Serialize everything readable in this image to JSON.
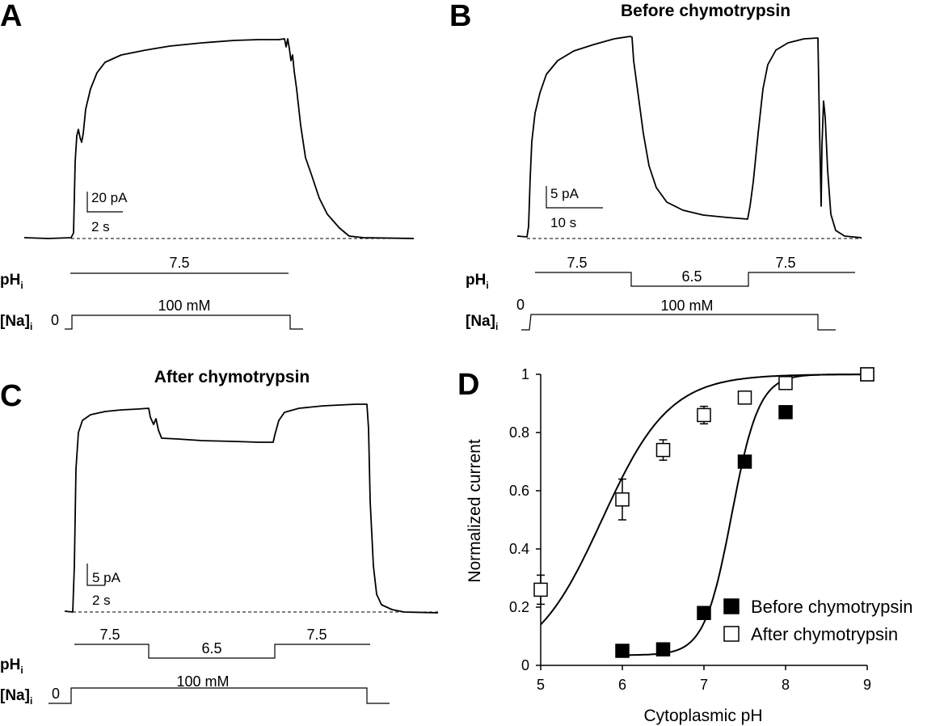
{
  "panels": {
    "A": {
      "label": "A",
      "title": "",
      "scale_y": "20 pA",
      "scale_x": "2 s",
      "ph_label": "pH",
      "ph_sub": "i",
      "ph_values": [
        "7.5"
      ],
      "na_label": "[Na]",
      "na_sub": "i",
      "na_zero": "0",
      "na_value": "100 mM"
    },
    "B": {
      "label": "B",
      "title": "Before chymotrypsin",
      "scale_y": "5 pA",
      "scale_x": "10 s",
      "ph_label": "pH",
      "ph_sub": "i",
      "ph_values": [
        "7.5",
        "6.5",
        "7.5"
      ],
      "na_label": "[Na]",
      "na_sub": "i",
      "na_zero": "0",
      "na_value": "100 mM"
    },
    "C": {
      "label": "C",
      "title": "After chymotrypsin",
      "scale_y": "5 pA",
      "scale_x": "2 s",
      "ph_label": "pH",
      "ph_sub": "i",
      "ph_values": [
        "7.5",
        "6.5",
        "7.5"
      ],
      "na_label": "[Na]",
      "na_sub": "i",
      "na_zero": "0",
      "na_value": "100 mM"
    }
  },
  "chart_data": {
    "label": "D",
    "type": "scatter",
    "xlabel": "Cytoplasmic pH",
    "ylabel": "Normalized current",
    "xlim": [
      5,
      9
    ],
    "ylim": [
      0,
      1
    ],
    "xticks": [
      "5",
      "6",
      "7",
      "8",
      "9"
    ],
    "yticks": [
      "0",
      "0.2",
      "0.4",
      "0.6",
      "0.8",
      "1"
    ],
    "legend_position": "bottom-right",
    "series": [
      {
        "name": "Before chymotrypsin",
        "marker": "filled-square",
        "color": "#000000",
        "points": [
          {
            "x": 6.0,
            "y": 0.05,
            "err": 0.0
          },
          {
            "x": 6.5,
            "y": 0.055,
            "err": 0.0
          },
          {
            "x": 7.0,
            "y": 0.18,
            "err": 0.02
          },
          {
            "x": 7.5,
            "y": 0.7,
            "err": 0.02
          },
          {
            "x": 8.0,
            "y": 0.87,
            "err": 0.0
          },
          {
            "x": 9.0,
            "y": 1.0,
            "err": 0.0
          }
        ],
        "fit": {
          "pK": 7.34,
          "n": 2.6,
          "min": 0.035
        }
      },
      {
        "name": "After chymotrypsin",
        "marker": "open-square",
        "color": "#ffffff",
        "points": [
          {
            "x": 5.0,
            "y": 0.26,
            "err": 0.05
          },
          {
            "x": 6.0,
            "y": 0.57,
            "err": 0.07
          },
          {
            "x": 6.5,
            "y": 0.74,
            "err": 0.035
          },
          {
            "x": 7.0,
            "y": 0.86,
            "err": 0.03
          },
          {
            "x": 7.5,
            "y": 0.92,
            "err": 0.0
          },
          {
            "x": 8.0,
            "y": 0.97,
            "err": 0.0
          },
          {
            "x": 9.0,
            "y": 1.0,
            "err": 0.0
          }
        ],
        "fit": {
          "pK": 5.75,
          "n": 1.05,
          "min": 0.0
        }
      }
    ]
  }
}
